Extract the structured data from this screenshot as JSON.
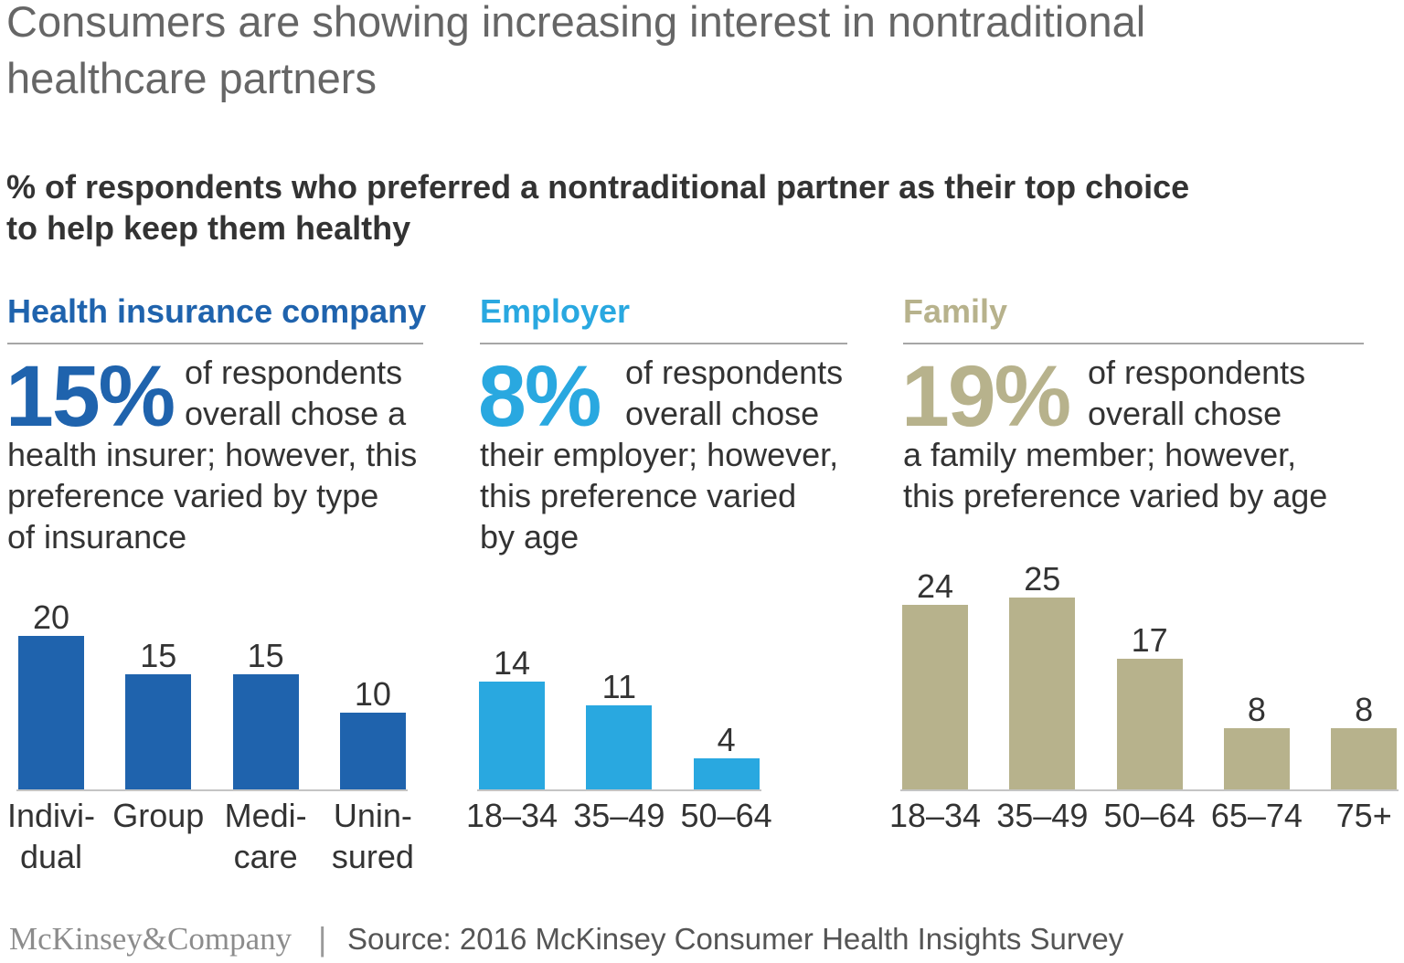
{
  "title": "Consumers are showing increasing interest in nontraditional healthcare partners",
  "subtitle": "% of respondents who preferred a nontraditional partner as their top choice to help keep them healthy",
  "chart_data": [
    {
      "type": "bar",
      "title": "Health insurance company",
      "highlight": "15%",
      "note_lines": [
        "of respondents",
        "overall chose a",
        "health insurer; however, this",
        "preference varied by type",
        "of insurance"
      ],
      "categories": [
        "Indivi-\ndual",
        "Group",
        "Medi-\ncare",
        "Unin-\nsured"
      ],
      "values": [
        20,
        15,
        15,
        10
      ],
      "color": "#1f63ad",
      "ylim": [
        0,
        25
      ],
      "grid": false
    },
    {
      "type": "bar",
      "title": "Employer",
      "highlight": "8%",
      "note_lines": [
        "of respondents",
        "overall chose",
        "their employer; however,",
        "this preference varied",
        "by age"
      ],
      "categories": [
        "18–34",
        "35–49",
        "50–64"
      ],
      "values": [
        14,
        11,
        4
      ],
      "color": "#29a8e0",
      "ylim": [
        0,
        25
      ],
      "grid": false
    },
    {
      "type": "bar",
      "title": "Family",
      "highlight": "19%",
      "note_lines": [
        "of respondents",
        "overall chose",
        "a family member; however,",
        "this preference varied by age"
      ],
      "categories": [
        "18–34",
        "35–49",
        "50–64",
        "65–74",
        "75+"
      ],
      "values": [
        24,
        25,
        17,
        8,
        8
      ],
      "color": "#b7b28c",
      "ylim": [
        0,
        25
      ],
      "grid": false
    }
  ],
  "footer": {
    "logo": "McKinsey&Company",
    "separator": "|",
    "source": "Source: 2016 McKinsey Consumer Health Insights Survey"
  }
}
